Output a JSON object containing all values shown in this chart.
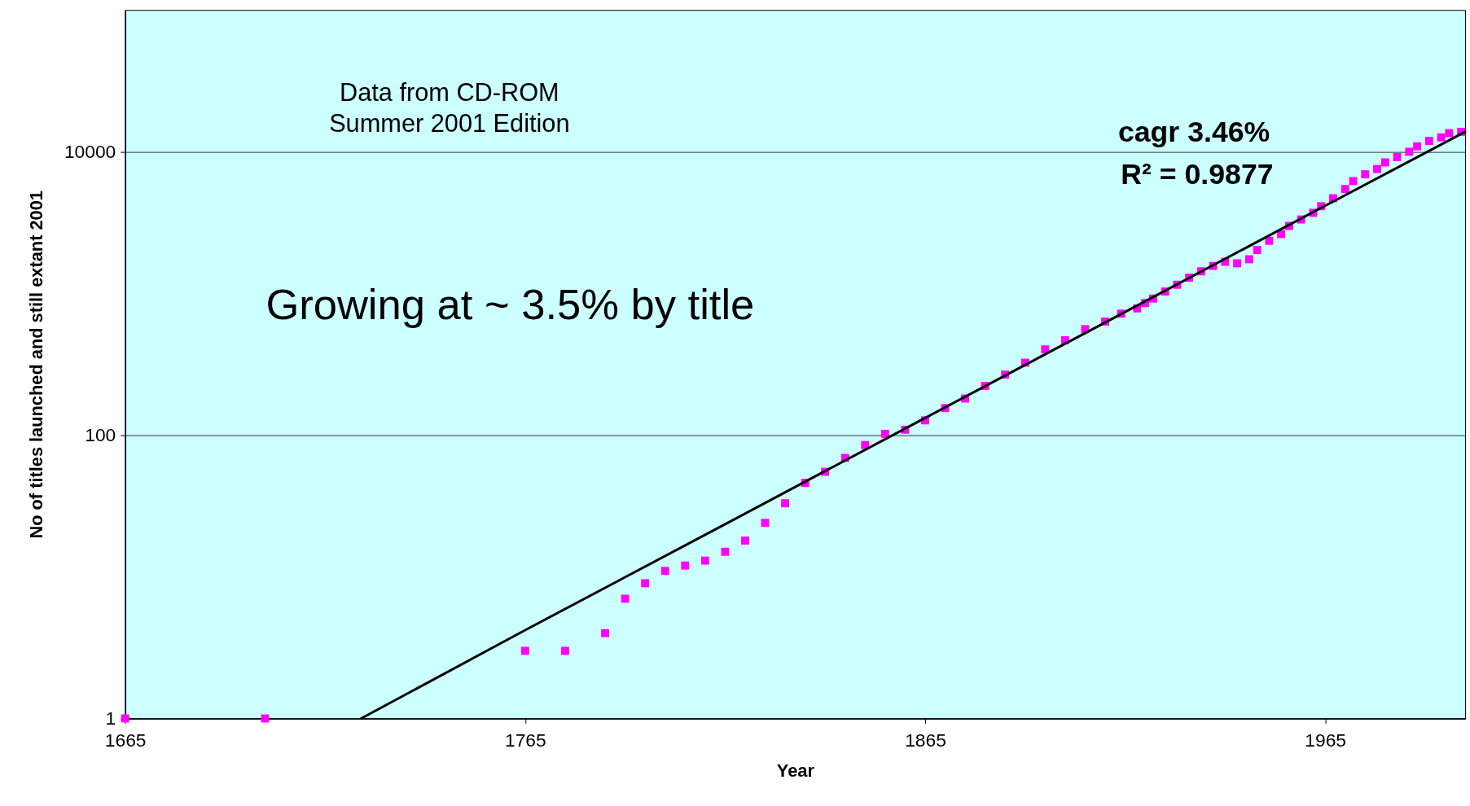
{
  "chart_data": {
    "type": "scatter",
    "xlabel": "Year",
    "ylabel": "No of titles launched and still extant 2001",
    "xlim": [
      1665,
      2000
    ],
    "xticks": [
      1665,
      1765,
      1865,
      1965
    ],
    "ylim": [
      1,
      100000
    ],
    "yticks": [
      1,
      100,
      10000
    ],
    "log": "y",
    "grid": "y",
    "legend": false,
    "marker": "square",
    "annotations": [
      "Data from CD-ROM\nSummer 2001 Edition",
      "Growing at ~ 3.5% by title",
      "cagr 3.46%",
      "R² = 0.9877"
    ],
    "series": [
      {
        "color": "#ff00ff",
        "x": [
          1665,
          1700,
          1765,
          1775,
          1785,
          1790,
          1795,
          1800,
          1805,
          1810,
          1815,
          1820,
          1825,
          1830,
          1835,
          1840,
          1845,
          1850,
          1855,
          1860,
          1865,
          1870,
          1875,
          1880,
          1885,
          1890,
          1895,
          1900,
          1905,
          1910,
          1914,
          1918,
          1920,
          1922,
          1925,
          1928,
          1931,
          1934,
          1937,
          1940,
          1943,
          1946,
          1948,
          1951,
          1954,
          1956,
          1959,
          1962,
          1964,
          1967,
          1970,
          1972,
          1975,
          1978,
          1980,
          1983,
          1986,
          1988,
          1991,
          1994,
          1996,
          1999
        ],
        "values": [
          1,
          1,
          3,
          3,
          4,
          7,
          9,
          11,
          12,
          13,
          15,
          18,
          24,
          33,
          46,
          55,
          69,
          85,
          102,
          109,
          127,
          155,
          181,
          222,
          267,
          324,
          402,
          467,
          559,
          632,
          719,
          783,
          854,
          919,
          1030,
          1150,
          1290,
          1430,
          1560,
          1670,
          1630,
          1740,
          2020,
          2350,
          2620,
          2990,
          3320,
          3700,
          4120,
          4690,
          5450,
          6200,
          6920,
          7540,
          8400,
          9150,
          9980,
          10900,
          11900,
          12600,
          13500,
          13800
        ]
      },
      {
        "type": "line",
        "color": "#000000",
        "marker": "none",
        "line_style": "solid",
        "x": [
          1724,
          1765,
          1815,
          1865,
          1915,
          1965,
          2000
        ],
        "values": [
          1,
          4.2,
          23.5,
          132,
          740,
          4150,
          13800
        ]
      }
    ]
  }
}
